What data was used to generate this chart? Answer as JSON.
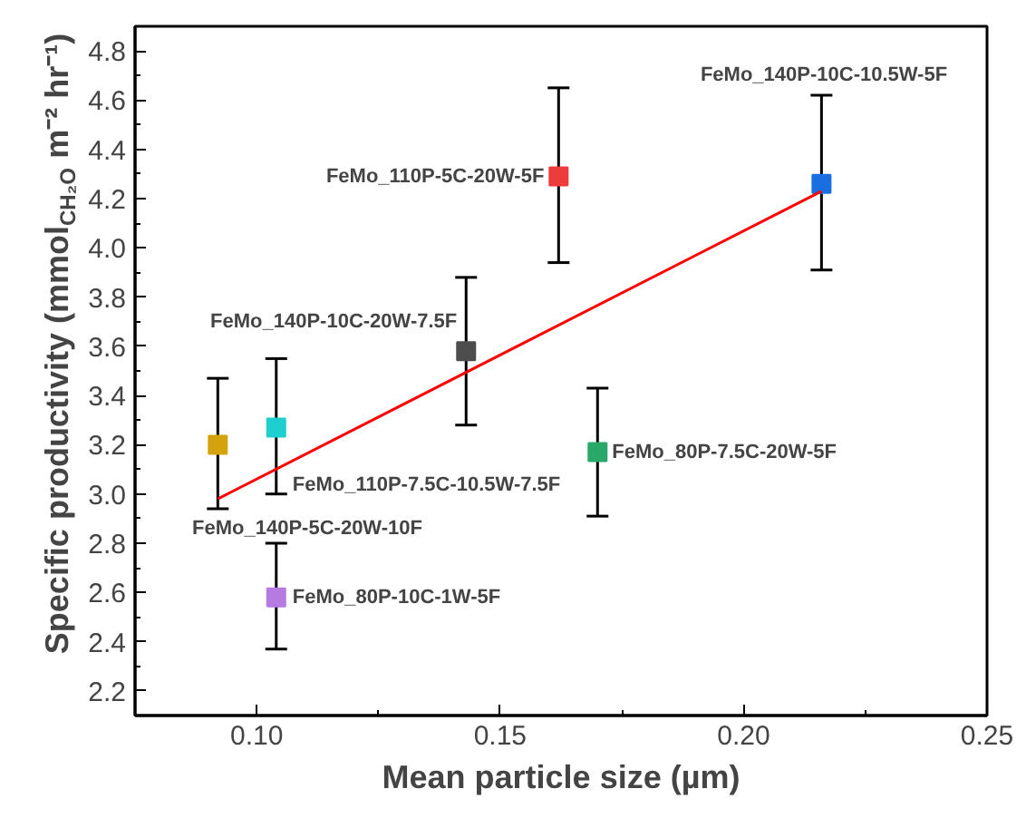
{
  "chart_data": {
    "type": "scatter",
    "xlabel": "Mean particle size (µm)",
    "ylabel": "Specific productivity (mmol$_{CH₂O}$ m⁻² hr⁻¹)",
    "x": [
      0.092,
      0.104,
      0.104,
      0.143,
      0.162,
      0.17,
      0.216
    ],
    "series": [
      {
        "type": "scatter",
        "marker": "square",
        "colors": [
          "#d4a20c",
          "#1fcfd0",
          "#b57be0",
          "#4d4d4d",
          "#ee3b3b",
          "#2aa86a",
          "#1a6fe0"
        ],
        "values": [
          3.2,
          3.27,
          2.58,
          3.58,
          4.29,
          3.17,
          4.26
        ],
        "errors": [
          [
            2.94,
            3.47
          ],
          [
            3.0,
            3.55
          ],
          [
            2.37,
            2.8
          ],
          [
            3.28,
            3.88
          ],
          [
            3.94,
            4.65
          ],
          [
            2.91,
            3.43
          ],
          [
            3.91,
            4.62
          ]
        ]
      },
      {
        "type": "line",
        "color": "#ff0000",
        "x": [
          0.092,
          0.216
        ],
        "values": [
          2.98,
          4.23
        ],
        "line_style": "solid",
        "marker": "none"
      }
    ],
    "annotations": [
      "FeMo_140P-5C-20W-10F",
      {
        "text": "FeMo_110P-7.5C-10.5W-7.5F",
        "x": 0.104,
        "y": 3.27
      },
      {
        "text": "FeMo_80P-10C-1W-5F",
        "x": 0.104,
        "y": 2.58
      },
      {
        "text": "FeMo_140P-10C-20W-7.5F",
        "x": 0.143,
        "y": 3.58
      },
      {
        "text": "FeMo_110P-5C-20W-5F",
        "x": 0.162,
        "y": 4.29
      },
      {
        "text": "FeMo_80P-7.5C-20W-5F",
        "x": 0.17,
        "y": 3.17
      },
      "FeMo_140P-10C-10.5W-5F"
    ],
    "xlim": [
      0.075,
      0.25
    ],
    "ylim": [
      2.1,
      4.9
    ],
    "xticks": [
      {
        "value": 0.1,
        "label": "0.10"
      },
      {
        "value": 0.15,
        "label": "0.15"
      },
      {
        "value": 0.2,
        "label": "0.20"
      },
      {
        "value": 0.25,
        "label": "0.25"
      }
    ],
    "yticks": [
      2.2,
      2.4,
      2.6,
      2.8,
      {
        "value": 3.0,
        "label": "3.0"
      },
      3.2,
      3.4,
      3.6,
      3.8,
      {
        "value": 4.0,
        "label": "4.0"
      },
      4.2,
      4.4,
      4.6,
      4.8
    ],
    "grid": false
  }
}
